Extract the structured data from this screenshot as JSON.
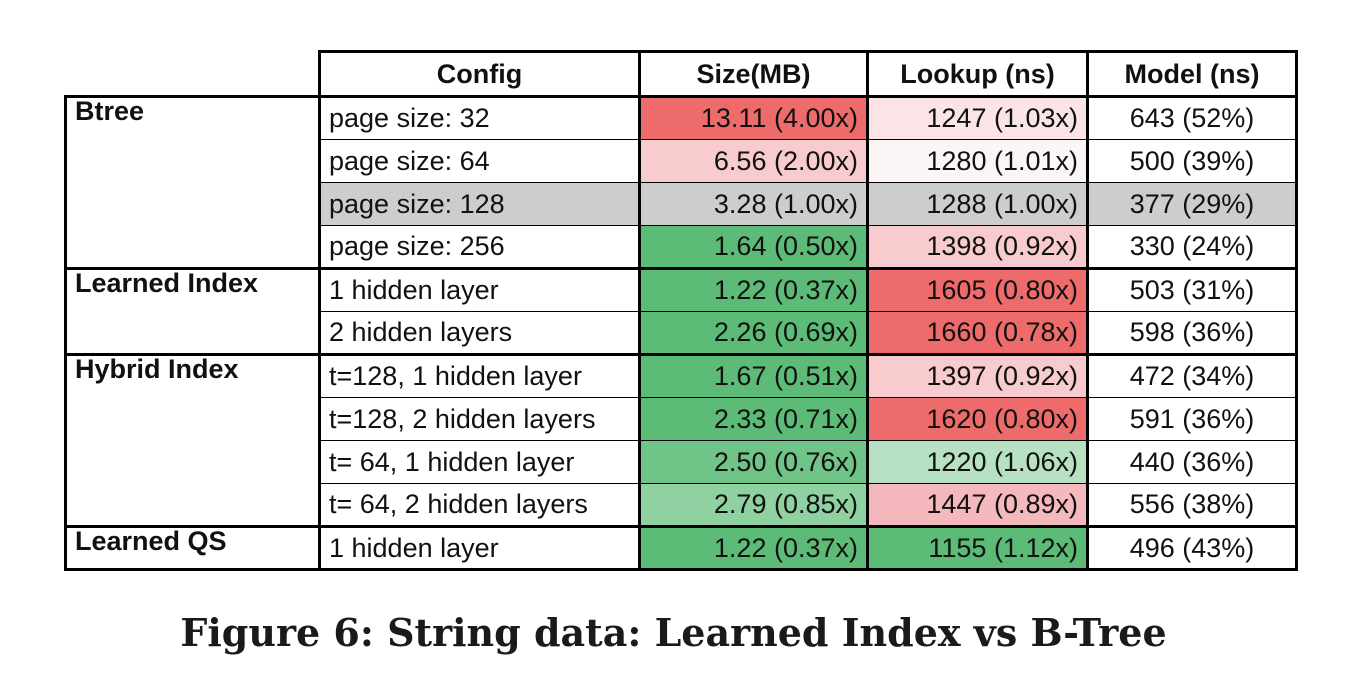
{
  "table": {
    "headers": {
      "config": "Config",
      "size": "Size(MB)",
      "lookup": "Lookup (ns)",
      "model": "Model (ns)"
    },
    "groups": [
      {
        "name": "Btree",
        "rows": [
          {
            "config": "page size:   32",
            "size": "13.11  (4.00x)",
            "size_color": "#ee6b6b",
            "lookup": "1247 (1.03x)",
            "lookup_color": "#fbe4e6",
            "model": "643 (52%)",
            "model_color": "#ffffff",
            "config_color": "#ffffff"
          },
          {
            "config": "page size:   64",
            "size": "6.56  (2.00x)",
            "size_color": "#f8cccf",
            "lookup": "1280 (1.01x)",
            "lookup_color": "#fbf5f6",
            "model": "500 (39%)",
            "model_color": "#ffffff",
            "config_color": "#ffffff"
          },
          {
            "config": "page size: 128",
            "size": "3.28  (1.00x)",
            "size_color": "#cdcdcd",
            "lookup": "1288 (1.00x)",
            "lookup_color": "#cdcdcd",
            "model": "377 (29%)",
            "model_color": "#cdcdcd",
            "config_color": "#cdcdcd"
          },
          {
            "config": "page size: 256",
            "size": "1.64  (0.50x)",
            "size_color": "#5dbb78",
            "lookup": "1398 (0.92x)",
            "lookup_color": "#f8cccf",
            "model": "330 (24%)",
            "model_color": "#ffffff",
            "config_color": "#ffffff"
          }
        ]
      },
      {
        "name": "Learned Index",
        "rows": [
          {
            "config": "1 hidden layer",
            "size": "1.22  (0.37x)",
            "size_color": "#5dbb78",
            "lookup": "1605 (0.80x)",
            "lookup_color": "#ee6b6b",
            "model": "503 (31%)",
            "model_color": "#ffffff",
            "config_color": "#ffffff"
          },
          {
            "config": "2 hidden layers",
            "size": "2.26  (0.69x)",
            "size_color": "#5dbb78",
            "lookup": "1660 (0.78x)",
            "lookup_color": "#ee6b6b",
            "model": "598 (36%)",
            "model_color": "#ffffff",
            "config_color": "#ffffff"
          }
        ]
      },
      {
        "name": "Hybrid Index",
        "rows": [
          {
            "config": "t=128, 1 hidden layer",
            "size": "1.67  (0.51x)",
            "size_color": "#5dbb78",
            "lookup": "1397 (0.92x)",
            "lookup_color": "#f8cccf",
            "model": "472 (34%)",
            "model_color": "#ffffff",
            "config_color": "#ffffff"
          },
          {
            "config": "t=128, 2 hidden layers",
            "size": "2.33  (0.71x)",
            "size_color": "#5dbb78",
            "lookup": "1620 (0.80x)",
            "lookup_color": "#ee6b6b",
            "model": "591 (36%)",
            "model_color": "#ffffff",
            "config_color": "#ffffff"
          },
          {
            "config": "t= 64, 1 hidden layer",
            "size": "2.50  (0.76x)",
            "size_color": "#70c488",
            "lookup": "1220 (1.06x)",
            "lookup_color": "#b8e1c3",
            "model": "440 (36%)",
            "model_color": "#ffffff",
            "config_color": "#ffffff"
          },
          {
            "config": "t= 64, 2 hidden layers",
            "size": "2.79  (0.85x)",
            "size_color": "#8fd1a1",
            "lookup": "1447 (0.89x)",
            "lookup_color": "#f5b8bd",
            "model": "556 (38%)",
            "model_color": "#ffffff",
            "config_color": "#ffffff"
          }
        ]
      },
      {
        "name": "Learned QS",
        "rows": [
          {
            "config": "1 hidden layer",
            "size": "1.22  (0.37x)",
            "size_color": "#5dbb78",
            "lookup": "1155 (1.12x)",
            "lookup_color": "#5dbb78",
            "model": "496 (43%)",
            "model_color": "#ffffff",
            "config_color": "#ffffff"
          }
        ]
      }
    ]
  },
  "caption": "Figure 6: String data: Learned Index vs B-Tree"
}
